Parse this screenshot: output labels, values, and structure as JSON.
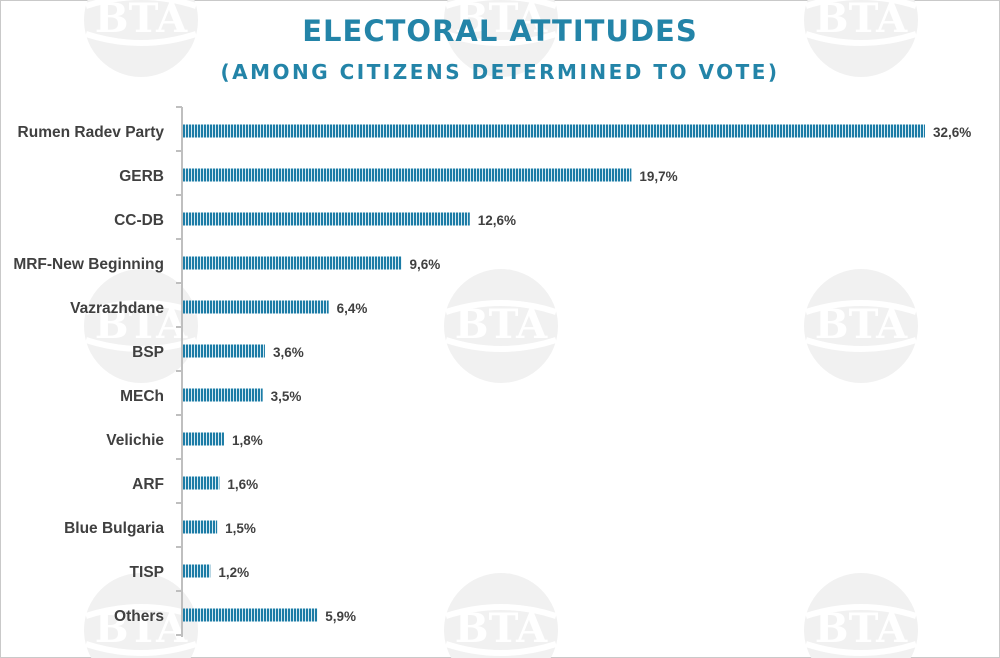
{
  "chart_data": {
    "type": "bar",
    "orientation": "horizontal",
    "title": "ELECTORAL ATTITUDES",
    "subtitle": "(AMONG CITIZENS DETERMINED TO VOTE)",
    "categories": [
      "Rumen Radev Party",
      "GERB",
      "CC-DB",
      "MRF-New Beginning",
      "Vazrazhdane",
      "BSP",
      "MECh",
      "Velichie",
      "ARF",
      "Blue Bulgaria",
      "TISP",
      "Others"
    ],
    "values": [
      32.6,
      19.7,
      12.6,
      9.6,
      6.4,
      3.6,
      3.5,
      1.8,
      1.6,
      1.5,
      1.2,
      5.9
    ],
    "value_labels": [
      "32,6%",
      "19,7%",
      "12,6%",
      "9,6%",
      "6,4%",
      "3,6%",
      "3,5%",
      "1,8%",
      "1,6%",
      "1,5%",
      "1,2%",
      "5,9%"
    ],
    "xlim": [
      0,
      32.6
    ],
    "grid": false,
    "legend": "none",
    "bar_color": "#1c7ca6"
  },
  "watermark": {
    "text": "BTA"
  }
}
